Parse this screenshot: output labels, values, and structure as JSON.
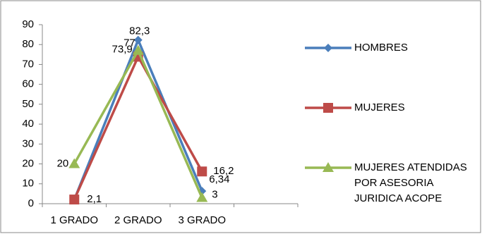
{
  "chart_data": {
    "type": "line",
    "categories": [
      "1 GRADO",
      "2 GRADO",
      "3 GRADO",
      null
    ],
    "series": [
      {
        "name": "HOMBRES",
        "color": "#4a7ebb",
        "marker": "diamond",
        "values": [
          2,
          82.3,
          6.34,
          null
        ],
        "value_labels": [
          null,
          "82,3",
          "6,34",
          null
        ]
      },
      {
        "name": "MUJERES",
        "color": "#be4b48",
        "marker": "square",
        "values": [
          2.1,
          73.9,
          16.2,
          null
        ],
        "value_labels": [
          "2,1",
          "73,9",
          "16,2",
          null
        ]
      },
      {
        "name": "MUJERES ATENDIDAS POR ASESORIA JURIDICA ACOPE",
        "color": "#98b954",
        "marker": "triangle",
        "values": [
          20,
          77,
          3,
          null
        ],
        "value_labels": [
          "20",
          "77",
          "3",
          null
        ]
      }
    ],
    "ylim": [
      0,
      90
    ],
    "yticks": [
      0,
      10,
      20,
      30,
      40,
      50,
      60,
      70,
      80,
      90
    ],
    "grid": false,
    "legend": "right"
  }
}
